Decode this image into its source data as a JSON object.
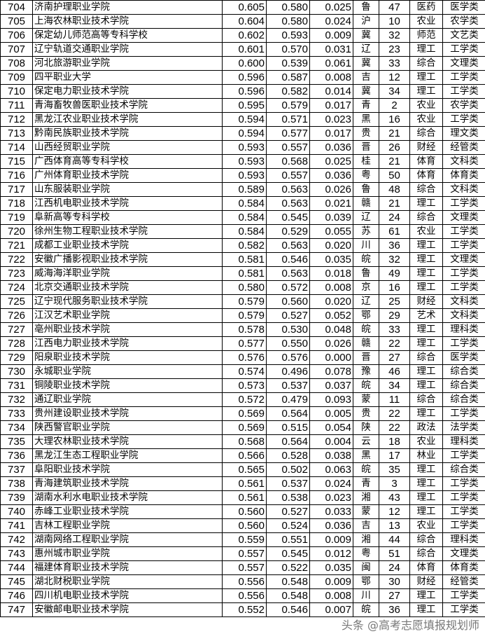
{
  "watermark": "头条 @高考志愿填报规划师",
  "rows": [
    [
      "704",
      "济南护理职业学院",
      "0.605",
      "0.580",
      "0.025",
      "鲁",
      "47",
      "医药",
      "医学类"
    ],
    [
      "705",
      "上海农林职业技术学院",
      "0.604",
      "0.580",
      "0.024",
      "沪",
      "10",
      "农业",
      "农学类"
    ],
    [
      "706",
      "保定幼儿师范高等专科学校",
      "0.602",
      "0.593",
      "0.009",
      "冀",
      "32",
      "师范",
      "文艺类"
    ],
    [
      "707",
      "辽宁轨道交通职业学院",
      "0.601",
      "0.570",
      "0.031",
      "辽",
      "23",
      "理工",
      "工学类"
    ],
    [
      "708",
      "河北旅游职业学院",
      "0.600",
      "0.539",
      "0.061",
      "冀",
      "33",
      "综合",
      "文理类"
    ],
    [
      "709",
      "四平职业大学",
      "0.596",
      "0.587",
      "0.008",
      "吉",
      "12",
      "理工",
      "工学类"
    ],
    [
      "710",
      "保定电力职业技术学院",
      "0.596",
      "0.582",
      "0.014",
      "冀",
      "34",
      "理工",
      "工学类"
    ],
    [
      "711",
      "青海畜牧兽医职业技术学院",
      "0.595",
      "0.579",
      "0.017",
      "青",
      "2",
      "农业",
      "农学类"
    ],
    [
      "712",
      "黑龙江农业职业技术学院",
      "0.594",
      "0.571",
      "0.023",
      "黑",
      "16",
      "农业",
      "工学类"
    ],
    [
      "713",
      "黔南民族职业技术学院",
      "0.594",
      "0.577",
      "0.017",
      "贵",
      "21",
      "综合",
      "理文类"
    ],
    [
      "714",
      "山西经贸职业学院",
      "0.593",
      "0.557",
      "0.036",
      "晋",
      "26",
      "财经",
      "经管类"
    ],
    [
      "715",
      "广西体育高等专科学校",
      "0.593",
      "0.568",
      "0.025",
      "桂",
      "21",
      "体育",
      "文科类"
    ],
    [
      "716",
      "广州体育职业技术学院",
      "0.593",
      "0.557",
      "0.036",
      "粤",
      "50",
      "体育",
      "体育类"
    ],
    [
      "717",
      "山东服装职业学院",
      "0.589",
      "0.563",
      "0.026",
      "鲁",
      "48",
      "综合",
      "文科类"
    ],
    [
      "718",
      "江西机电职业技术学院",
      "0.584",
      "0.563",
      "0.021",
      "赣",
      "21",
      "理工",
      "工学类"
    ],
    [
      "719",
      "阜新高等专科学校",
      "0.584",
      "0.545",
      "0.039",
      "辽",
      "24",
      "综合",
      "文理类"
    ],
    [
      "720",
      "徐州生物工程职业技术学院",
      "0.584",
      "0.529",
      "0.055",
      "苏",
      "61",
      "农业",
      "工学类"
    ],
    [
      "721",
      "成都工业职业技术学院",
      "0.582",
      "0.563",
      "0.020",
      "川",
      "36",
      "理工",
      "工学类"
    ],
    [
      "722",
      "安徽广播影视职业技术学院",
      "0.581",
      "0.546",
      "0.035",
      "皖",
      "32",
      "理工",
      "文理类"
    ],
    [
      "723",
      "威海海洋职业学院",
      "0.581",
      "0.563",
      "0.018",
      "鲁",
      "49",
      "理工",
      "工学类"
    ],
    [
      "724",
      "北京交通职业技术学院",
      "0.580",
      "0.572",
      "0.008",
      "京",
      "16",
      "理工",
      "工学类"
    ],
    [
      "725",
      "辽宁现代服务职业技术学院",
      "0.579",
      "0.560",
      "0.020",
      "辽",
      "25",
      "财经",
      "文科类"
    ],
    [
      "726",
      "江汉艺术职业学院",
      "0.579",
      "0.527",
      "0.052",
      "鄂",
      "29",
      "艺术",
      "文科类"
    ],
    [
      "727",
      "亳州职业技术学院",
      "0.578",
      "0.530",
      "0.048",
      "皖",
      "33",
      "理工",
      "理科类"
    ],
    [
      "728",
      "江西电力职业技术学院",
      "0.577",
      "0.550",
      "0.026",
      "赣",
      "22",
      "理工",
      "工学类"
    ],
    [
      "729",
      "阳泉职业技术学院",
      "0.576",
      "0.576",
      "0.000",
      "晋",
      "27",
      "综合",
      "医学类"
    ],
    [
      "730",
      "永城职业学院",
      "0.574",
      "0.496",
      "0.078",
      "豫",
      "46",
      "理工",
      "综合类"
    ],
    [
      "731",
      "铜陵职业技术学院",
      "0.573",
      "0.537",
      "0.037",
      "皖",
      "34",
      "理工",
      "综合类"
    ],
    [
      "732",
      "通辽职业学院",
      "0.572",
      "0.479",
      "0.093",
      "蒙",
      "11",
      "综合",
      "综合类"
    ],
    [
      "733",
      "贵州建设职业技术学院",
      "0.569",
      "0.564",
      "0.005",
      "贵",
      "22",
      "理工",
      "工学类"
    ],
    [
      "734",
      "陕西警官职业学院",
      "0.569",
      "0.515",
      "0.054",
      "陕",
      "22",
      "政法",
      "法学类"
    ],
    [
      "735",
      "大理农林职业技术学院",
      "0.568",
      "0.564",
      "0.004",
      "云",
      "18",
      "农业",
      "理科类"
    ],
    [
      "736",
      "黑龙江生态工程职业学院",
      "0.566",
      "0.528",
      "0.038",
      "黑",
      "17",
      "林业",
      "工学类"
    ],
    [
      "737",
      "阜阳职业技术学院",
      "0.565",
      "0.502",
      "0.063",
      "皖",
      "35",
      "理工",
      "综合类"
    ],
    [
      "738",
      "青海建筑职业技术学院",
      "0.561",
      "0.537",
      "0.024",
      "青",
      "3",
      "理工",
      "工学类"
    ],
    [
      "739",
      "湖南水利水电职业技术学院",
      "0.561",
      "0.538",
      "0.023",
      "湘",
      "43",
      "理工",
      "工学类"
    ],
    [
      "740",
      "赤峰工业职业技术学院",
      "0.560",
      "0.527",
      "0.033",
      "蒙",
      "12",
      "理工",
      "工学类"
    ],
    [
      "741",
      "吉林工程职业学院",
      "0.560",
      "0.524",
      "0.036",
      "吉",
      "13",
      "农业",
      "工学类"
    ],
    [
      "742",
      "湖南网络工程职业学院",
      "0.559",
      "0.551",
      "0.009",
      "湘",
      "44",
      "综合",
      "理科类"
    ],
    [
      "743",
      "惠州城市职业学院",
      "0.557",
      "0.545",
      "0.012",
      "粤",
      "51",
      "综合",
      "文理类"
    ],
    [
      "744",
      "福建体育职业技术学院",
      "0.557",
      "0.522",
      "0.035",
      "闽",
      "24",
      "体育",
      "体育类"
    ],
    [
      "745",
      "湖北财税职业学院",
      "0.556",
      "0.548",
      "0.009",
      "鄂",
      "30",
      "财经",
      "经管类"
    ],
    [
      "746",
      "四川机电职业技术学院",
      "0.556",
      "0.548",
      "0.008",
      "川",
      "27",
      "理工",
      "工学类"
    ],
    [
      "747",
      "安徽邮电职业技术学院",
      "0.552",
      "0.546",
      "0.007",
      "皖",
      "36",
      "理工",
      "工学类"
    ]
  ]
}
